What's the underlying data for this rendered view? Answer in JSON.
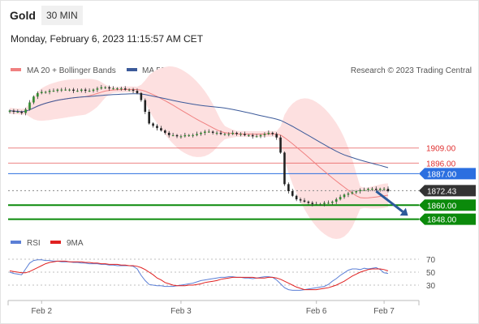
{
  "header": {
    "symbol": "Gold",
    "timeframe": "30 MIN",
    "datetime": "Monday, February 6, 2023 11:15:57 AM CET"
  },
  "legend": {
    "ma20": {
      "label": "MA 20 + Bollinger Bands",
      "color": "#f08080"
    },
    "ma50": {
      "label": "MA 50",
      "color": "#3c5a9a"
    },
    "rsi": {
      "label": "RSI",
      "color": "#5b7fd6"
    },
    "rsi_ma": {
      "label": "9MA",
      "color": "#e02020"
    }
  },
  "credit": "Research © 2023 Trading Central",
  "chart_data": [
    {
      "type": "candlestick",
      "ylim": [
        1838,
        1965
      ],
      "x_dates": [
        "Feb 2",
        "Feb 3",
        "Feb 6",
        "Feb 7"
      ],
      "x_date_index": [
        8,
        43,
        77,
        94
      ],
      "x_count": 96,
      "closes": [
        1941,
        1940,
        1940,
        1939,
        1942,
        1948,
        1953,
        1956,
        1957,
        1957,
        1958,
        1958,
        1959,
        1959,
        1959,
        1959,
        1958,
        1958,
        1959,
        1958,
        1958,
        1959,
        1960,
        1961,
        1961,
        1960,
        1960,
        1960,
        1960,
        1959,
        1959,
        1958,
        1956,
        1950,
        1940,
        1930,
        1928,
        1926,
        1924,
        1922,
        1920,
        1920,
        1919,
        1919,
        1920,
        1920,
        1920,
        1921,
        1922,
        1923,
        1923,
        1922,
        1922,
        1921,
        1921,
        1921,
        1922,
        1921,
        1921,
        1920,
        1920,
        1919,
        1919,
        1920,
        1921,
        1922,
        1921,
        1918,
        1905,
        1878,
        1872,
        1868,
        1865,
        1864,
        1863,
        1862,
        1861,
        1861,
        1861,
        1862,
        1862,
        1863,
        1865,
        1867,
        1869,
        1870,
        1871,
        1872,
        1873,
        1873,
        1874,
        1874,
        1873,
        1874,
        1874,
        1872
      ],
      "price_levels": [
        {
          "value": 1909.0,
          "label": "1909.00",
          "kind": "resistance"
        },
        {
          "value": 1896.0,
          "label": "1896.00",
          "kind": "resistance"
        },
        {
          "value": 1887.0,
          "label": "1887.00",
          "kind": "pivot"
        },
        {
          "value": 1872.43,
          "label": "1872.43",
          "kind": "last"
        },
        {
          "value": 1860.0,
          "label": "1860.00",
          "kind": "support"
        },
        {
          "value": 1848.0,
          "label": "1848.00",
          "kind": "support"
        }
      ],
      "forecast_arrow": {
        "from_index": 92,
        "from_value": 1872,
        "to_index": 100,
        "to_value": 1851
      },
      "colors": {
        "up": "#2f8a2f",
        "down": "#222222",
        "band": "#fde0e0",
        "resistance": "#e03030",
        "pivot": "#2b6fe0",
        "support": "#0b8a0b",
        "last": "#333333",
        "arrow": "#2d5a9a"
      }
    },
    {
      "type": "line",
      "name": "RSI",
      "ylim": [
        10,
        80
      ],
      "yticks": [
        30,
        50,
        70
      ],
      "rsi": [
        50,
        48,
        47,
        46,
        55,
        64,
        68,
        69,
        69,
        68,
        68,
        67,
        67,
        66,
        66,
        66,
        65,
        65,
        64,
        64,
        63,
        63,
        63,
        62,
        62,
        61,
        61,
        60,
        60,
        60,
        60,
        59,
        55,
        45,
        37,
        31,
        30,
        29,
        29,
        28,
        28,
        28,
        29,
        30,
        31,
        32,
        33,
        35,
        37,
        38,
        39,
        40,
        41,
        42,
        42,
        43,
        43,
        42,
        42,
        41,
        41,
        40,
        41,
        42,
        43,
        43,
        42,
        38,
        32,
        26,
        23,
        22,
        22,
        22,
        23,
        24,
        25,
        26,
        27,
        28,
        31,
        36,
        40,
        45,
        49,
        53,
        55,
        55,
        54,
        56,
        55,
        56,
        57,
        54,
        49,
        48
      ],
      "ma9": [
        52,
        51,
        50,
        49,
        49,
        51,
        54,
        57,
        60,
        63,
        65,
        66,
        67,
        67,
        67,
        66,
        66,
        66,
        66,
        65,
        65,
        64,
        64,
        63,
        63,
        62,
        62,
        62,
        61,
        61,
        60,
        60,
        59,
        57,
        54,
        50,
        46,
        41,
        38,
        34,
        32,
        30,
        29,
        29,
        29,
        30,
        30,
        31,
        32,
        34,
        35,
        36,
        37,
        39,
        40,
        41,
        42,
        42,
        42,
        42,
        42,
        42,
        41,
        41,
        41,
        42,
        42,
        41,
        39,
        36,
        33,
        30,
        27,
        25,
        23,
        23,
        23,
        23,
        24,
        25,
        26,
        28,
        30,
        33,
        36,
        40,
        44,
        47,
        50,
        52,
        54,
        55,
        55,
        55,
        54,
        52
      ]
    }
  ]
}
